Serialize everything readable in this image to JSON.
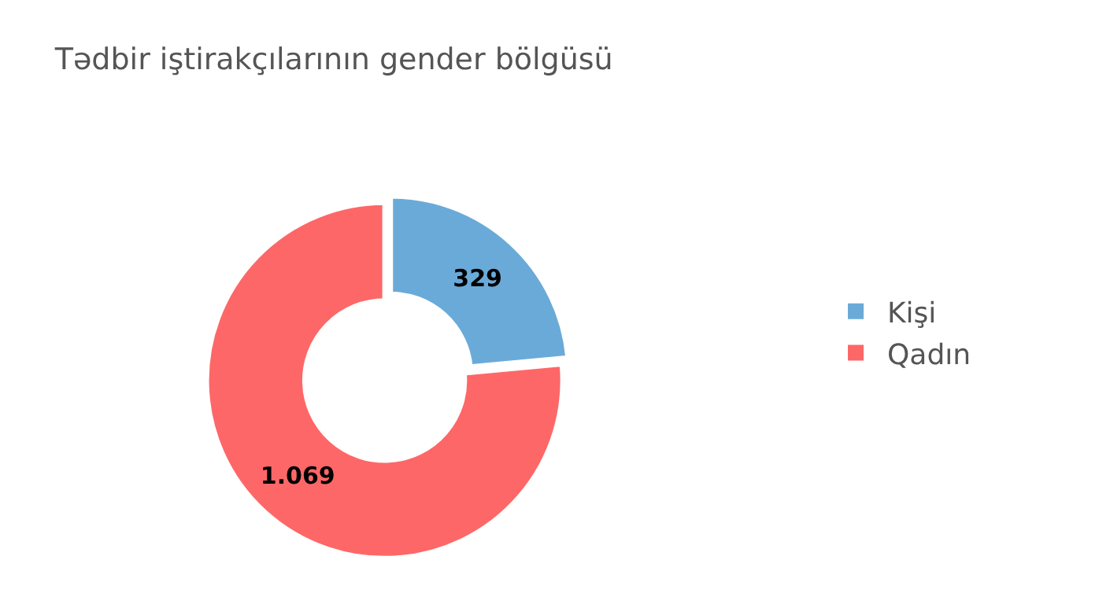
{
  "chart_data": {
    "type": "donut",
    "title": "Tədbir iştirakçılarının gender bölgüsü",
    "categories": [
      "Kişi",
      "Qadın"
    ],
    "values": [
      329,
      1069
    ],
    "value_labels": [
      "329",
      "1.069"
    ],
    "colors": [
      "#6aaad8",
      "#fe6767"
    ],
    "legend": "right"
  }
}
